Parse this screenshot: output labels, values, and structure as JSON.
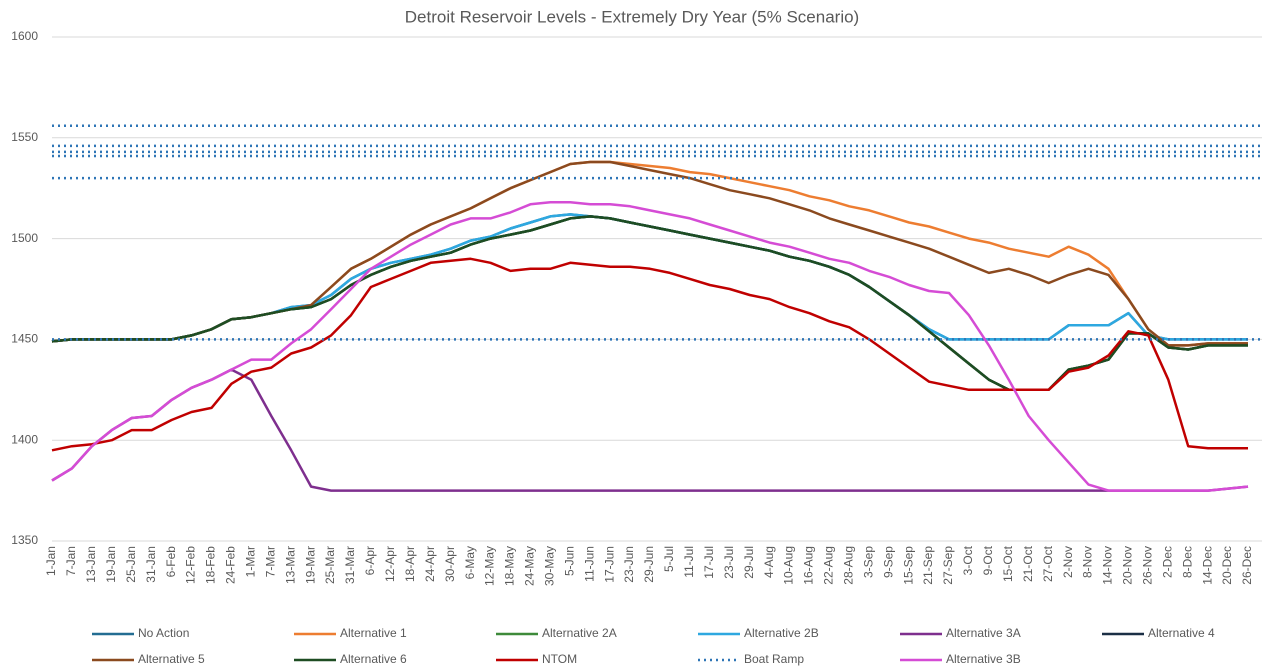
{
  "chart_data": {
    "type": "line",
    "title": "Detroit Reservoir Levels - Extremely Dry Year (5% Scenario)",
    "categories": [
      "1-Jan",
      "7-Jan",
      "13-Jan",
      "19-Jan",
      "25-Jan",
      "31-Jan",
      "6-Feb",
      "12-Feb",
      "18-Feb",
      "24-Feb",
      "1-Mar",
      "7-Mar",
      "13-Mar",
      "19-Mar",
      "25-Mar",
      "31-Mar",
      "6-Apr",
      "12-Apr",
      "18-Apr",
      "24-Apr",
      "30-Apr",
      "6-May",
      "12-May",
      "18-May",
      "24-May",
      "30-May",
      "5-Jun",
      "11-Jun",
      "17-Jun",
      "23-Jun",
      "29-Jun",
      "5-Jul",
      "11-Jul",
      "17-Jul",
      "23-Jul",
      "29-Jul",
      "4-Aug",
      "10-Aug",
      "16-Aug",
      "22-Aug",
      "28-Aug",
      "3-Sep",
      "9-Sep",
      "15-Sep",
      "21-Sep",
      "27-Sep",
      "3-Oct",
      "9-Oct",
      "15-Oct",
      "21-Oct",
      "27-Oct",
      "2-Nov",
      "8-Nov",
      "14-Nov",
      "20-Nov",
      "26-Nov",
      "2-Dec",
      "8-Dec",
      "14-Dec",
      "20-Dec",
      "26-Dec"
    ],
    "ylim": [
      1350,
      1600
    ],
    "yticks": [
      1350,
      1400,
      1450,
      1500,
      1550,
      1600
    ],
    "grid": true,
    "series": [
      {
        "name": "No Action",
        "color": "#236d92",
        "values": [
          1449,
          1450,
          1450,
          1450,
          1450,
          1450,
          1450,
          1452,
          1455,
          1460,
          1461,
          1463,
          1466,
          1467,
          1472,
          1480,
          1485,
          1488,
          1490,
          1492,
          1495,
          1499,
          1501,
          1505,
          1508,
          1511,
          1512,
          1511,
          1510,
          1508,
          1506,
          1504,
          1502,
          1500,
          1498,
          1496,
          1494,
          1491,
          1489,
          1486,
          1482,
          1476,
          1469,
          1462,
          1455,
          1450,
          1450,
          1450,
          1450,
          1450,
          1450,
          1457,
          1457,
          1457,
          1463,
          1452,
          1450,
          1450,
          1450,
          1450,
          1450
        ]
      },
      {
        "name": "Alternative 1",
        "color": "#ed7d31",
        "values": [
          1449,
          1450,
          1450,
          1450,
          1450,
          1450,
          1450,
          1452,
          1455,
          1460,
          1461,
          1463,
          1465,
          1467,
          1476,
          1485,
          1490,
          1496,
          1502,
          1507,
          1511,
          1515,
          1520,
          1525,
          1529,
          1533,
          1537,
          1538,
          1538,
          1537,
          1536,
          1535,
          1533,
          1532,
          1530,
          1528,
          1526,
          1524,
          1521,
          1519,
          1516,
          1514,
          1511,
          1508,
          1506,
          1503,
          1500,
          1498,
          1495,
          1493,
          1491,
          1496,
          1492,
          1485,
          1470,
          1455,
          1447,
          1447,
          1448,
          1448,
          1448
        ]
      },
      {
        "name": "Alternative 2A",
        "color": "#3e8a3a",
        "values": [
          1449,
          1450,
          1450,
          1450,
          1450,
          1450,
          1450,
          1452,
          1455,
          1460,
          1461,
          1463,
          1465,
          1466,
          1470,
          1477,
          1482,
          1486,
          1489,
          1491,
          1493,
          1497,
          1500,
          1502,
          1504,
          1507,
          1510,
          1511,
          1510,
          1508,
          1506,
          1504,
          1502,
          1500,
          1498,
          1496,
          1494,
          1491,
          1489,
          1486,
          1482,
          1476,
          1469,
          1462,
          1454,
          1446,
          1438,
          1430,
          1425,
          1425,
          1425,
          1435,
          1437,
          1440,
          1453,
          1453,
          1446,
          1445,
          1447,
          1447,
          1447
        ]
      },
      {
        "name": "Alternative 2B",
        "color": "#2ea8e0",
        "values": [
          1449,
          1450,
          1450,
          1450,
          1450,
          1450,
          1450,
          1452,
          1455,
          1460,
          1461,
          1463,
          1466,
          1467,
          1472,
          1480,
          1485,
          1488,
          1490,
          1492,
          1495,
          1499,
          1501,
          1505,
          1508,
          1511,
          1512,
          1511,
          1510,
          1508,
          1506,
          1504,
          1502,
          1500,
          1498,
          1496,
          1494,
          1491,
          1489,
          1486,
          1482,
          1476,
          1469,
          1462,
          1455,
          1450,
          1450,
          1450,
          1450,
          1450,
          1450,
          1457,
          1457,
          1457,
          1463,
          1452,
          1450,
          1450,
          1450,
          1450,
          1450
        ]
      },
      {
        "name": "Alternative 3A",
        "color": "#7e2f8e",
        "values": [
          1380,
          1386,
          1397,
          1405,
          1411,
          1412,
          1420,
          1426,
          1430,
          1435,
          1430,
          1412,
          1395,
          1377,
          1375,
          1375,
          1375,
          1375,
          1375,
          1375,
          1375,
          1375,
          1375,
          1375,
          1375,
          1375,
          1375,
          1375,
          1375,
          1375,
          1375,
          1375,
          1375,
          1375,
          1375,
          1375,
          1375,
          1375,
          1375,
          1375,
          1375,
          1375,
          1375,
          1375,
          1375,
          1375,
          1375,
          1375,
          1375,
          1375,
          1375,
          1375,
          1375,
          1375,
          1375,
          1375,
          1375,
          1375,
          1375,
          1376,
          1377
        ]
      },
      {
        "name": "Alternative 4",
        "color": "#1b2f45",
        "values": [
          1449,
          1450,
          1450,
          1450,
          1450,
          1450,
          1450,
          1452,
          1455,
          1460,
          1461,
          1463,
          1465,
          1466,
          1470,
          1477,
          1482,
          1486,
          1489,
          1491,
          1493,
          1497,
          1500,
          1502,
          1504,
          1507,
          1510,
          1511,
          1510,
          1508,
          1506,
          1504,
          1502,
          1500,
          1498,
          1496,
          1494,
          1491,
          1489,
          1486,
          1482,
          1476,
          1469,
          1462,
          1454,
          1446,
          1438,
          1430,
          1425,
          1425,
          1425,
          1435,
          1437,
          1440,
          1453,
          1453,
          1446,
          1445,
          1447,
          1447,
          1447
        ]
      },
      {
        "name": "Alternative 5",
        "color": "#8b4a1f",
        "values": [
          1449,
          1450,
          1450,
          1450,
          1450,
          1450,
          1450,
          1452,
          1455,
          1460,
          1461,
          1463,
          1465,
          1467,
          1476,
          1485,
          1490,
          1496,
          1502,
          1507,
          1511,
          1515,
          1520,
          1525,
          1529,
          1533,
          1537,
          1538,
          1538,
          1536,
          1534,
          1532,
          1530,
          1527,
          1524,
          1522,
          1520,
          1517,
          1514,
          1510,
          1507,
          1504,
          1501,
          1498,
          1495,
          1491,
          1487,
          1483,
          1485,
          1482,
          1478,
          1482,
          1485,
          1482,
          1470,
          1455,
          1447,
          1447,
          1448,
          1448,
          1448
        ]
      },
      {
        "name": "Alternative 6",
        "color": "#1e4d22",
        "values": [
          1449,
          1450,
          1450,
          1450,
          1450,
          1450,
          1450,
          1452,
          1455,
          1460,
          1461,
          1463,
          1465,
          1466,
          1470,
          1477,
          1482,
          1486,
          1489,
          1491,
          1493,
          1497,
          1500,
          1502,
          1504,
          1507,
          1510,
          1511,
          1510,
          1508,
          1506,
          1504,
          1502,
          1500,
          1498,
          1496,
          1494,
          1491,
          1489,
          1486,
          1482,
          1476,
          1469,
          1462,
          1454,
          1446,
          1438,
          1430,
          1425,
          1425,
          1425,
          1435,
          1437,
          1440,
          1453,
          1453,
          1446,
          1445,
          1447,
          1447,
          1447
        ]
      },
      {
        "name": "NTOM",
        "color": "#c00000",
        "values": [
          1395,
          1397,
          1398,
          1400,
          1405,
          1405,
          1410,
          1414,
          1416,
          1428,
          1434,
          1436,
          1443,
          1446,
          1452,
          1462,
          1476,
          1480,
          1484,
          1488,
          1489,
          1490,
          1488,
          1484,
          1485,
          1485,
          1488,
          1487,
          1486,
          1486,
          1485,
          1483,
          1480,
          1477,
          1475,
          1472,
          1470,
          1466,
          1463,
          1459,
          1456,
          1450,
          1443,
          1436,
          1429,
          1427,
          1425,
          1425,
          1425,
          1425,
          1425,
          1434,
          1436,
          1442,
          1454,
          1452,
          1430,
          1397,
          1396,
          1396,
          1396
        ]
      },
      {
        "name": "Boat Ramp",
        "color": "#2e75b6",
        "dotted": true,
        "levels": [
          1556,
          1546,
          1543,
          1541,
          1530,
          1450
        ]
      },
      {
        "name": "Alternative 3B",
        "color": "#d54cd5",
        "values": [
          1380,
          1386,
          1397,
          1405,
          1411,
          1412,
          1420,
          1426,
          1430,
          1435,
          1440,
          1440,
          1448,
          1455,
          1465,
          1475,
          1485,
          1491,
          1497,
          1502,
          1507,
          1510,
          1510,
          1513,
          1517,
          1518,
          1518,
          1517,
          1517,
          1516,
          1514,
          1512,
          1510,
          1507,
          1504,
          1501,
          1498,
          1496,
          1493,
          1490,
          1488,
          1484,
          1481,
          1477,
          1474,
          1473,
          1462,
          1447,
          1430,
          1412,
          1400,
          1389,
          1378,
          1375,
          1375,
          1375,
          1375,
          1375,
          1375,
          1376,
          1377
        ]
      }
    ]
  }
}
